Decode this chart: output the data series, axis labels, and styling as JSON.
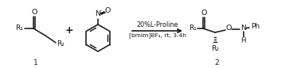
{
  "bg_color": "#ffffff",
  "line_color": "#1a1a1a",
  "text_color": "#1a1a1a",
  "arrow_above": "20%L-Proline",
  "arrow_below": "[bmim]BF₄, rt, 3-4h",
  "label_1": "1",
  "label_2": "2",
  "figsize": [
    3.78,
    0.86
  ],
  "dpi": 100
}
